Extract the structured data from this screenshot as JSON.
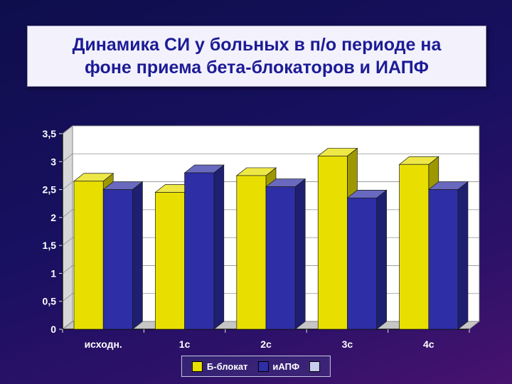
{
  "slide": {
    "title_line1": "Динамика СИ у больных в п/о периоде на",
    "title_line2": "фоне приема бета-блокаторов и ИАПФ"
  },
  "colors": {
    "title_text": "#1c1c96",
    "title_bg": "#f3f1fc",
    "slide_bg_top": "#0e0e4c",
    "slide_bg_bottom": "#47136f",
    "series_beta_blocker": "#e8df00",
    "series_iapf": "#2e2ea6",
    "legend_extra_swatch": "#c8cdf0"
  },
  "chart_data": {
    "type": "bar",
    "style": "3d-clustered-column",
    "categories": [
      "исходн.",
      "1с",
      "2с",
      "3с",
      "4с"
    ],
    "series": [
      {
        "name": "Б-блокат",
        "color": "#e8df00",
        "values": [
          2.65,
          2.45,
          2.75,
          3.1,
          2.95
        ]
      },
      {
        "name": "иАПФ",
        "color": "#2e2ea6",
        "values": [
          2.5,
          2.8,
          2.55,
          2.35,
          2.5
        ]
      }
    ],
    "title": "",
    "xlabel": "",
    "ylabel": "",
    "ylim": [
      0,
      3.5
    ],
    "ytick_step": 0.5,
    "ytick_labels": [
      "0",
      "0,5",
      "1",
      "1,5",
      "2",
      "2,5",
      "3",
      "3,5"
    ],
    "grid": true,
    "legend_position": "bottom",
    "legend_extra_swatch_color": "#c8cdf0",
    "plot_bg": "#ffffff",
    "wall_color": "#d7d7d7",
    "floor_color": "#c6c6c6"
  }
}
